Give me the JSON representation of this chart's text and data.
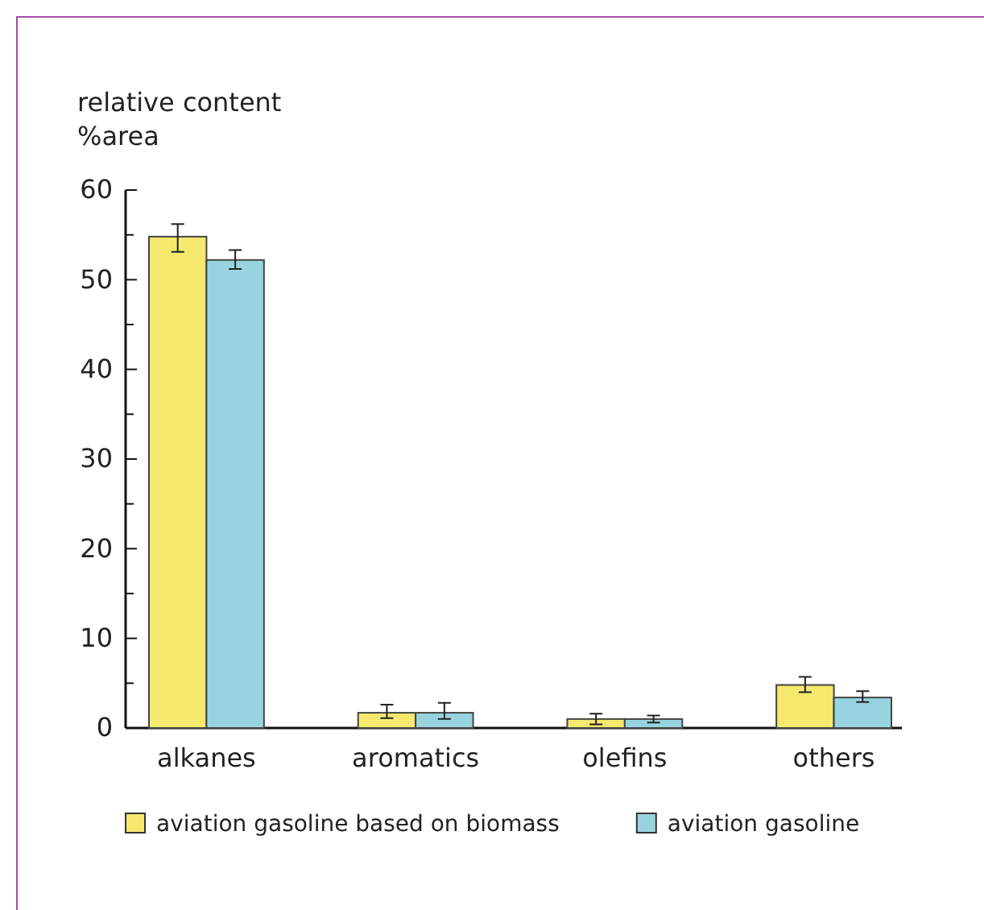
{
  "chart_data": {
    "type": "bar",
    "ylabel": "relative content\n%area",
    "categories": [
      "alkanes",
      "aromatics",
      "olefins",
      "others"
    ],
    "series": [
      {
        "name": "aviation gasoline based on biomass",
        "color": "#f5e96e",
        "values": [
          54.8,
          1.7,
          1.0,
          4.8
        ],
        "errors": [
          [
            53.1,
            56.2
          ],
          [
            1.1,
            2.6
          ],
          [
            0.4,
            1.6
          ],
          [
            4.0,
            5.7
          ]
        ]
      },
      {
        "name": "aviation gasoline",
        "color": "#98d3e0",
        "values": [
          52.2,
          1.7,
          1.0,
          3.4
        ],
        "errors": [
          [
            51.2,
            53.3
          ],
          [
            1.0,
            2.8
          ],
          [
            0.6,
            1.4
          ],
          [
            2.9,
            4.1
          ]
        ]
      }
    ],
    "ylim": [
      0,
      60
    ],
    "yticks": [
      0,
      {
        "value": 5,
        "label": null
      },
      10,
      {
        "value": 15,
        "label": null
      },
      20,
      {
        "value": 25,
        "label": null
      },
      30,
      {
        "value": 35,
        "label": null
      },
      40,
      {
        "value": 45,
        "label": null
      },
      50,
      {
        "value": 55,
        "label": null
      },
      60
    ],
    "grid": false,
    "legend": "bottom"
  }
}
